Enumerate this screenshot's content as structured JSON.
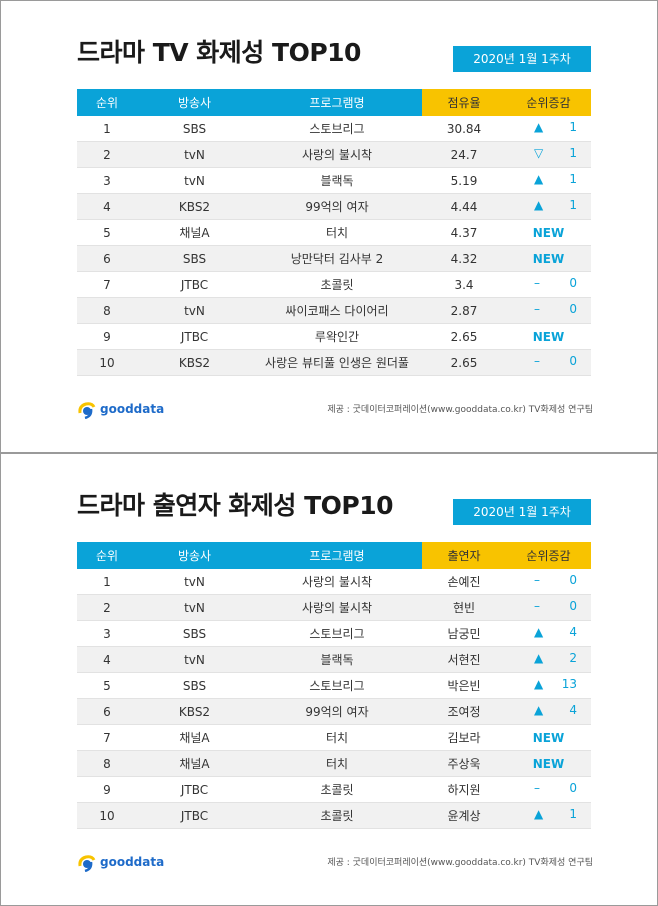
{
  "panel1": {
    "title": "드라마 TV 화제성 TOP10",
    "date": "2020년 1월 1주차",
    "headers": [
      "순위",
      "방송사",
      "프로그램명",
      "점유율",
      "순위증감"
    ],
    "rows": [
      {
        "rank": "1",
        "network": "SBS",
        "program": "스토브리그",
        "value": "30.84",
        "change": "up",
        "change_num": "1"
      },
      {
        "rank": "2",
        "network": "tvN",
        "program": "사랑의 불시착",
        "value": "24.7",
        "change": "down",
        "change_num": "1"
      },
      {
        "rank": "3",
        "network": "tvN",
        "program": "블랙독",
        "value": "5.19",
        "change": "up",
        "change_num": "1"
      },
      {
        "rank": "4",
        "network": "KBS2",
        "program": "99억의 여자",
        "value": "4.44",
        "change": "up",
        "change_num": "1"
      },
      {
        "rank": "5",
        "network": "채널A",
        "program": "터치",
        "value": "4.37",
        "change": "new",
        "change_num": "NEW"
      },
      {
        "rank": "6",
        "network": "SBS",
        "program": "낭만닥터 김사부 2",
        "value": "4.32",
        "change": "new",
        "change_num": "NEW"
      },
      {
        "rank": "7",
        "network": "JTBC",
        "program": "초콜릿",
        "value": "3.4",
        "change": "same",
        "change_num": "0"
      },
      {
        "rank": "8",
        "network": "tvN",
        "program": "싸이코패스 다이어리",
        "value": "2.87",
        "change": "same",
        "change_num": "0"
      },
      {
        "rank": "9",
        "network": "JTBC",
        "program": "루왁인간",
        "value": "2.65",
        "change": "new",
        "change_num": "NEW"
      },
      {
        "rank": "10",
        "network": "KBS2",
        "program": "사랑은 뷰티풀 인생은 원더풀",
        "value": "2.65",
        "change": "same",
        "change_num": "0"
      }
    ]
  },
  "panel2": {
    "title": "드라마 출연자 화제성 TOP10",
    "date": "2020년 1월 1주차",
    "headers": [
      "순위",
      "방송사",
      "프로그램명",
      "출연자",
      "순위증감"
    ],
    "rows": [
      {
        "rank": "1",
        "network": "tvN",
        "program": "사랑의 불시착",
        "value": "손예진",
        "change": "same",
        "change_num": "0"
      },
      {
        "rank": "2",
        "network": "tvN",
        "program": "사랑의 불시착",
        "value": "현빈",
        "change": "same",
        "change_num": "0"
      },
      {
        "rank": "3",
        "network": "SBS",
        "program": "스토브리그",
        "value": "남궁민",
        "change": "up",
        "change_num": "4"
      },
      {
        "rank": "4",
        "network": "tvN",
        "program": "블랙독",
        "value": "서현진",
        "change": "up",
        "change_num": "2"
      },
      {
        "rank": "5",
        "network": "SBS",
        "program": "스토브리그",
        "value": "박은빈",
        "change": "up",
        "change_num": "13"
      },
      {
        "rank": "6",
        "network": "KBS2",
        "program": "99억의 여자",
        "value": "조여정",
        "change": "up",
        "change_num": "4"
      },
      {
        "rank": "7",
        "network": "채널A",
        "program": "터치",
        "value": "김보라",
        "change": "new",
        "change_num": "NEW"
      },
      {
        "rank": "8",
        "network": "채널A",
        "program": "터치",
        "value": "주상욱",
        "change": "new",
        "change_num": "NEW"
      },
      {
        "rank": "9",
        "network": "JTBC",
        "program": "초콜릿",
        "value": "하지원",
        "change": "same",
        "change_num": "0"
      },
      {
        "rank": "10",
        "network": "JTBC",
        "program": "초콜릿",
        "value": "윤계상",
        "change": "up",
        "change_num": "1"
      }
    ]
  },
  "logo": {
    "text": "gooddata",
    "icon": "gooddata-logo-icon"
  },
  "source": "제공 : 굿데이터코퍼레이션(www.gooddata.co.kr) TV화제성 연구팀",
  "colors": {
    "accent": "#0aa3d8",
    "highlight": "#f8c300",
    "logo": "#1e6bc9"
  }
}
